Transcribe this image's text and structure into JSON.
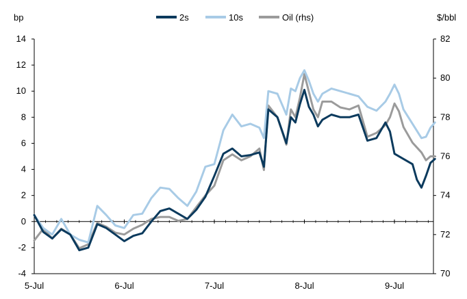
{
  "chart_data": {
    "type": "line",
    "title": "",
    "legend": {
      "placement": "top-center"
    },
    "left_axis": {
      "unit": "bp",
      "range": [
        -4,
        14
      ],
      "ticks": [
        "14",
        "12",
        "10",
        "8",
        "6",
        "4",
        "2",
        "0",
        "-2",
        "-4"
      ]
    },
    "right_axis": {
      "unit": "$/bbl",
      "range": [
        70,
        82
      ],
      "ticks": [
        "82",
        "80",
        "78",
        "76",
        "74",
        "72",
        "70"
      ]
    },
    "x_axis": {
      "range": [
        0,
        4.3
      ],
      "ticks": [
        {
          "label": "5-Jul",
          "value": 0
        },
        {
          "label": "6-Jul",
          "value": 1
        },
        {
          "label": "7-Jul",
          "value": 2
        },
        {
          "label": "8-Jul",
          "value": 3
        },
        {
          "label": "9-Jul",
          "value": 4
        }
      ]
    },
    "grid": false,
    "series": [
      {
        "name": "2s",
        "axis": "left",
        "color": "#0b3a5d",
        "points": [
          [
            0,
            0.5
          ],
          [
            0.1,
            -0.8
          ],
          [
            0.2,
            -1.3
          ],
          [
            0.3,
            -0.6
          ],
          [
            0.4,
            -1.0
          ],
          [
            0.5,
            -2.2
          ],
          [
            0.6,
            -2.0
          ],
          [
            0.7,
            -0.2
          ],
          [
            0.8,
            -0.5
          ],
          [
            0.9,
            -1.0
          ],
          [
            1.0,
            -1.5
          ],
          [
            1.1,
            -1.1
          ],
          [
            1.2,
            -0.9
          ],
          [
            1.3,
            0.0
          ],
          [
            1.4,
            0.8
          ],
          [
            1.5,
            1.0
          ],
          [
            1.6,
            0.6
          ],
          [
            1.7,
            0.2
          ],
          [
            1.8,
            0.9
          ],
          [
            1.9,
            1.9
          ],
          [
            2.0,
            3.5
          ],
          [
            2.1,
            5.2
          ],
          [
            2.2,
            5.6
          ],
          [
            2.3,
            5.0
          ],
          [
            2.4,
            5.1
          ],
          [
            2.5,
            5.3
          ],
          [
            2.55,
            4.2
          ],
          [
            2.6,
            8.6
          ],
          [
            2.7,
            8.0
          ],
          [
            2.75,
            7.0
          ],
          [
            2.8,
            6.0
          ],
          [
            2.85,
            8.0
          ],
          [
            2.9,
            7.6
          ],
          [
            2.95,
            9.0
          ],
          [
            3.0,
            10.1
          ],
          [
            3.05,
            8.8
          ],
          [
            3.1,
            8.2
          ],
          [
            3.15,
            7.3
          ],
          [
            3.2,
            7.8
          ],
          [
            3.3,
            8.2
          ],
          [
            3.4,
            8.0
          ],
          [
            3.5,
            8.0
          ],
          [
            3.6,
            8.2
          ],
          [
            3.7,
            6.2
          ],
          [
            3.8,
            6.4
          ],
          [
            3.9,
            7.6
          ],
          [
            3.95,
            6.9
          ],
          [
            4.0,
            5.2
          ],
          [
            4.1,
            4.8
          ],
          [
            4.2,
            4.4
          ],
          [
            4.25,
            3.2
          ],
          [
            4.3,
            2.6
          ],
          [
            4.35,
            3.5
          ],
          [
            4.4,
            4.5
          ],
          [
            4.45,
            4.8
          ]
        ]
      },
      {
        "name": "10s",
        "axis": "left",
        "color": "#a8cbe6",
        "points": [
          [
            0,
            0.5
          ],
          [
            0.1,
            -0.5
          ],
          [
            0.2,
            -1.0
          ],
          [
            0.3,
            0.2
          ],
          [
            0.4,
            -1.0
          ],
          [
            0.5,
            -1.4
          ],
          [
            0.6,
            -1.6
          ],
          [
            0.7,
            1.2
          ],
          [
            0.8,
            0.5
          ],
          [
            0.9,
            -0.3
          ],
          [
            1.0,
            -0.5
          ],
          [
            1.1,
            0.5
          ],
          [
            1.2,
            0.6
          ],
          [
            1.3,
            1.8
          ],
          [
            1.4,
            2.6
          ],
          [
            1.5,
            2.5
          ],
          [
            1.6,
            1.8
          ],
          [
            1.7,
            1.2
          ],
          [
            1.8,
            2.3
          ],
          [
            1.9,
            4.2
          ],
          [
            2.0,
            4.4
          ],
          [
            2.1,
            7.0
          ],
          [
            2.2,
            8.2
          ],
          [
            2.3,
            7.3
          ],
          [
            2.4,
            7.5
          ],
          [
            2.5,
            7.2
          ],
          [
            2.55,
            6.4
          ],
          [
            2.6,
            10.0
          ],
          [
            2.7,
            9.8
          ],
          [
            2.75,
            9.0
          ],
          [
            2.8,
            8.2
          ],
          [
            2.85,
            10.2
          ],
          [
            2.9,
            10.0
          ],
          [
            2.95,
            11.0
          ],
          [
            3.0,
            11.6
          ],
          [
            3.05,
            10.8
          ],
          [
            3.1,
            9.8
          ],
          [
            3.15,
            9.2
          ],
          [
            3.2,
            9.8
          ],
          [
            3.3,
            10.2
          ],
          [
            3.4,
            10.0
          ],
          [
            3.5,
            9.8
          ],
          [
            3.6,
            9.6
          ],
          [
            3.7,
            8.8
          ],
          [
            3.8,
            8.5
          ],
          [
            3.9,
            9.2
          ],
          [
            3.95,
            9.8
          ],
          [
            4.0,
            10.5
          ],
          [
            4.05,
            9.8
          ],
          [
            4.1,
            8.6
          ],
          [
            4.2,
            7.5
          ],
          [
            4.3,
            6.4
          ],
          [
            4.35,
            6.5
          ],
          [
            4.4,
            7.2
          ],
          [
            4.45,
            7.6
          ]
        ]
      },
      {
        "name": "Oil (rhs)",
        "axis": "right",
        "color": "#9b9b9b",
        "points": [
          [
            0,
            71.7
          ],
          [
            0.1,
            72.3
          ],
          [
            0.2,
            71.8
          ],
          [
            0.3,
            72.3
          ],
          [
            0.4,
            72.0
          ],
          [
            0.5,
            71.3
          ],
          [
            0.6,
            71.5
          ],
          [
            0.7,
            72.6
          ],
          [
            0.8,
            72.4
          ],
          [
            0.9,
            72.1
          ],
          [
            1.0,
            72.0
          ],
          [
            1.1,
            72.3
          ],
          [
            1.2,
            72.5
          ],
          [
            1.3,
            72.8
          ],
          [
            1.4,
            72.9
          ],
          [
            1.5,
            72.9
          ],
          [
            1.6,
            72.7
          ],
          [
            1.7,
            72.8
          ],
          [
            1.8,
            73.4
          ],
          [
            1.9,
            74.0
          ],
          [
            2.0,
            74.5
          ],
          [
            2.1,
            75.8
          ],
          [
            2.2,
            76.1
          ],
          [
            2.3,
            75.8
          ],
          [
            2.4,
            76.0
          ],
          [
            2.5,
            76.4
          ],
          [
            2.55,
            75.3
          ],
          [
            2.6,
            78.6
          ],
          [
            2.7,
            78.0
          ],
          [
            2.75,
            77.3
          ],
          [
            2.8,
            76.6
          ],
          [
            2.85,
            78.4
          ],
          [
            2.9,
            78.0
          ],
          [
            2.95,
            79.0
          ],
          [
            3.0,
            80.2
          ],
          [
            3.05,
            79.3
          ],
          [
            3.1,
            78.4
          ],
          [
            3.15,
            78.0
          ],
          [
            3.2,
            78.8
          ],
          [
            3.3,
            78.8
          ],
          [
            3.4,
            78.5
          ],
          [
            3.5,
            78.4
          ],
          [
            3.6,
            78.6
          ],
          [
            3.7,
            77.0
          ],
          [
            3.8,
            77.2
          ],
          [
            3.9,
            77.6
          ],
          [
            3.95,
            78.0
          ],
          [
            4.0,
            78.7
          ],
          [
            4.05,
            78.3
          ],
          [
            4.1,
            77.5
          ],
          [
            4.2,
            76.7
          ],
          [
            4.3,
            76.2
          ],
          [
            4.35,
            75.8
          ],
          [
            4.4,
            76.0
          ],
          [
            4.45,
            76.0
          ]
        ]
      }
    ]
  }
}
